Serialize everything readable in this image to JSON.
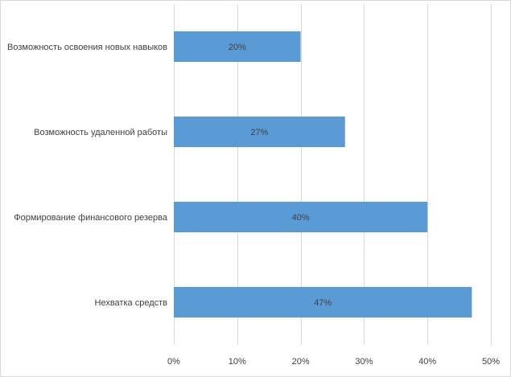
{
  "chart_data": {
    "type": "bar",
    "orientation": "horizontal",
    "title": "",
    "xlabel": "",
    "ylabel": "",
    "categories": [
      "Возможность освоения новых навыков",
      "Возможность удаленной работы",
      "Формирование финансового резерва",
      "Нехватка средств"
    ],
    "values": [
      20,
      27,
      40,
      47
    ],
    "data_labels": [
      "20%",
      "27%",
      "40%",
      "47%"
    ],
    "xlim": [
      0,
      50
    ],
    "x_ticks": [
      0,
      10,
      20,
      30,
      40,
      50
    ],
    "x_tick_labels": [
      "0%",
      "10%",
      "20%",
      "30%",
      "40%",
      "50%"
    ],
    "grid": true,
    "legend": "none",
    "bar_color": "#5b9bd5"
  }
}
